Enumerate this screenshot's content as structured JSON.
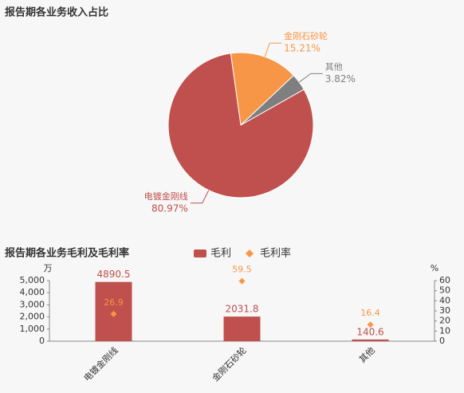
{
  "chart_data": [
    {
      "type": "pie",
      "title": "报告期各业务收入占比",
      "categories": [
        "金刚石砂轮",
        "其他",
        "电镀金刚线"
      ],
      "values": [
        15.21,
        3.82,
        80.97
      ],
      "value_labels": [
        "15.21%",
        "3.82%",
        "80.97%"
      ],
      "colors": [
        "#f79646",
        "#7f7f7f",
        "#c0504d"
      ]
    },
    {
      "type": "bar",
      "title": "报告期各业务毛利及毛利率",
      "y_unit": "万",
      "y2_unit": "%",
      "categories": [
        "电镀金刚线",
        "金刚石砂轮",
        "其他"
      ],
      "series": [
        {
          "name": "毛利",
          "type": "bar",
          "color": "#c0504d",
          "values": [
            4890.5,
            2031.8,
            140.6
          ]
        },
        {
          "name": "毛利率",
          "type": "scatter",
          "axis": "y2",
          "color": "#f79646",
          "values": [
            26.9,
            59.5,
            16.4
          ]
        }
      ],
      "ylim": [
        0,
        5000
      ],
      "yticks": [
        0,
        {
          "value": 1000,
          "label": "1,000"
        },
        {
          "value": 2000,
          "label": "2,000"
        },
        {
          "value": 3000,
          "label": "3,000"
        },
        {
          "value": 4000,
          "label": "4,000"
        },
        {
          "value": 5000,
          "label": "5,000"
        }
      ],
      "y2lim": [
        0,
        60
      ],
      "y2ticks": [
        0,
        10,
        20,
        30,
        40,
        50,
        60
      ]
    }
  ]
}
